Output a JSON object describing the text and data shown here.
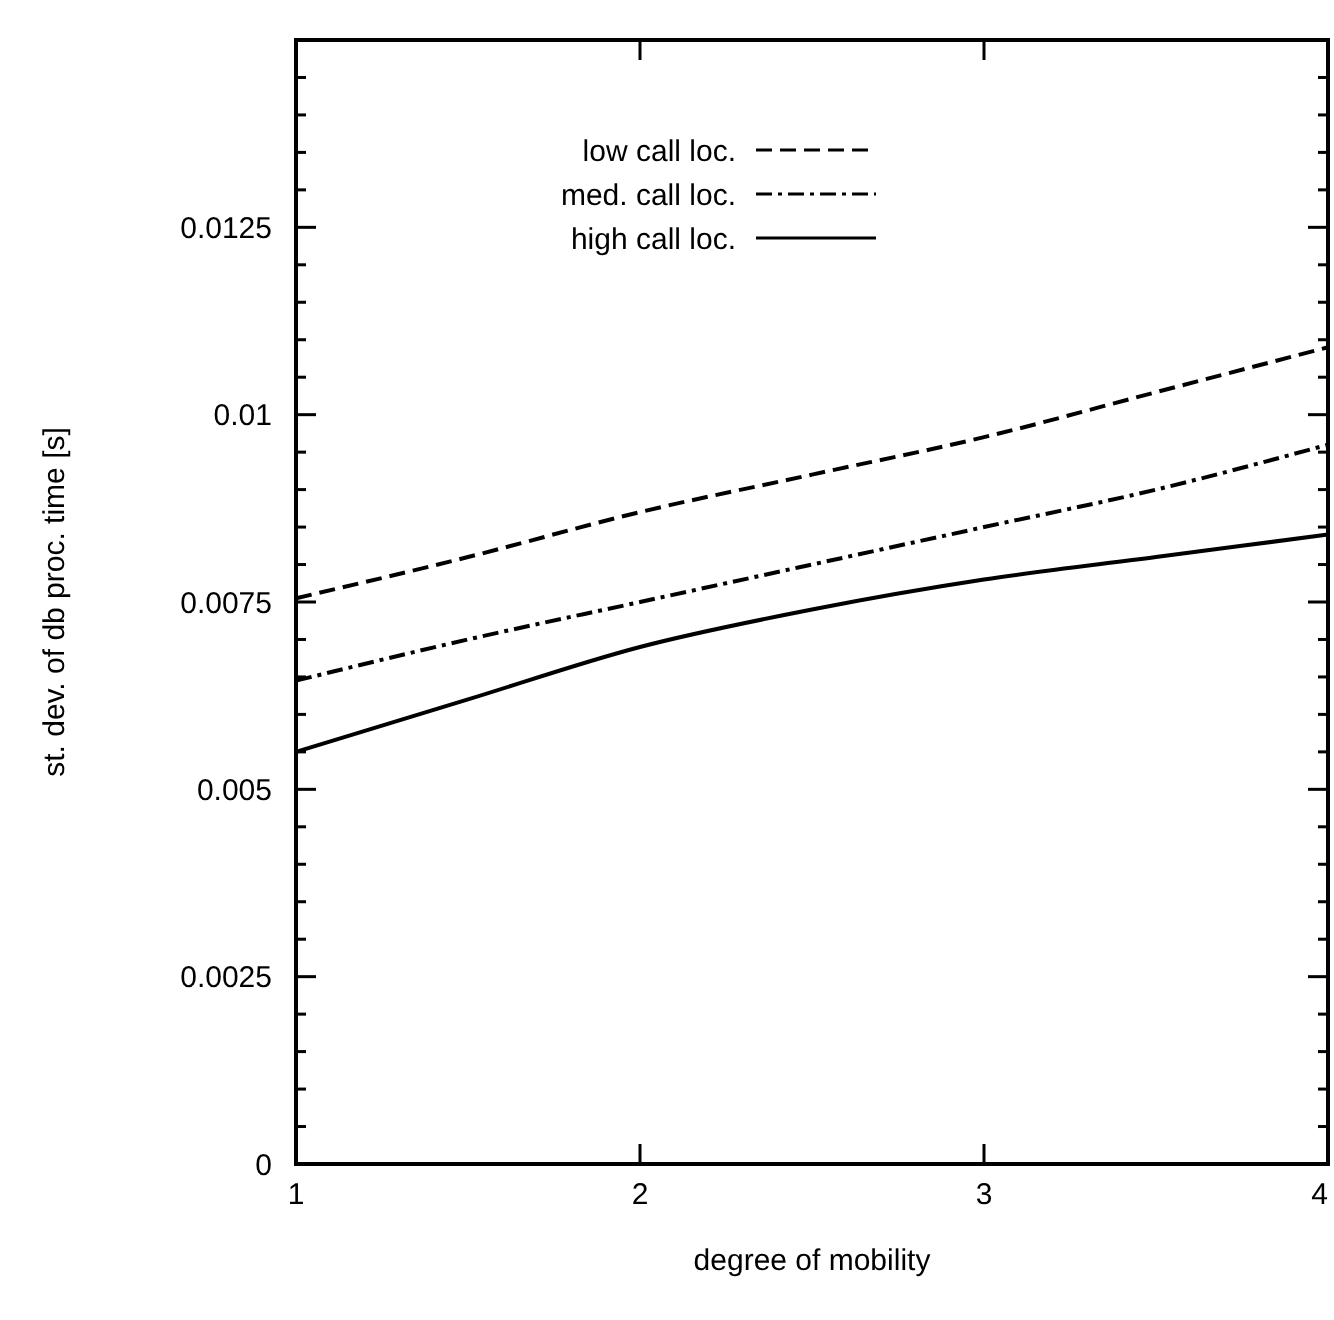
{
  "chart_data": {
    "type": "line",
    "xlabel": "degree of mobility",
    "ylabel": "st. dev. of db proc. time [s]",
    "x": [
      1,
      1.5,
      2,
      2.5,
      3,
      3.5,
      4
    ],
    "series": [
      {
        "name": "low call loc.",
        "color": "#000000",
        "line_style": "dashed",
        "values": [
          0.00755,
          0.0081,
          0.0087,
          0.0092,
          0.0097,
          0.0103,
          0.0109
        ]
      },
      {
        "name": "med. call loc.",
        "color": "#000000",
        "line_style": "dashdot",
        "values": [
          0.00645,
          0.007,
          0.0075,
          0.008,
          0.0085,
          0.009,
          0.0096
        ]
      },
      {
        "name": "high call loc.",
        "color": "#000000",
        "line_style": "solid",
        "values": [
          0.0055,
          0.0062,
          0.0069,
          0.0074,
          0.0078,
          0.0081,
          0.0084
        ]
      }
    ],
    "xlim": [
      1,
      4
    ],
    "xticks": [
      1,
      2,
      3,
      4
    ],
    "ylim": [
      0,
      0.015
    ],
    "yticks": [
      0,
      {
        "value": 0.0005,
        "label": null
      },
      {
        "value": 0.001,
        "label": null
      },
      {
        "value": 0.0015,
        "label": null
      },
      {
        "value": 0.002,
        "label": null
      },
      0.0025,
      {
        "value": 0.003,
        "label": null
      },
      {
        "value": 0.0035,
        "label": null
      },
      {
        "value": 0.004,
        "label": null
      },
      {
        "value": 0.0045,
        "label": null
      },
      0.005,
      {
        "value": 0.0055,
        "label": null
      },
      {
        "value": 0.006,
        "label": null
      },
      {
        "value": 0.0065,
        "label": null
      },
      {
        "value": 0.007,
        "label": null
      },
      0.0075,
      {
        "value": 0.008,
        "label": null
      },
      {
        "value": 0.0085,
        "label": null
      },
      {
        "value": 0.009,
        "label": null
      },
      {
        "value": 0.0095,
        "label": null
      },
      0.01,
      {
        "value": 0.0105,
        "label": null
      },
      {
        "value": 0.011,
        "label": null
      },
      {
        "value": 0.0115,
        "label": null
      },
      {
        "value": 0.012,
        "label": null
      },
      0.0125,
      {
        "value": 0.013,
        "label": null
      },
      {
        "value": 0.0135,
        "label": null
      },
      {
        "value": 0.014,
        "label": null
      },
      {
        "value": 0.0145,
        "label": null
      },
      {
        "value": 0.015,
        "label": null
      }
    ],
    "legend": "top left",
    "grid": false
  }
}
